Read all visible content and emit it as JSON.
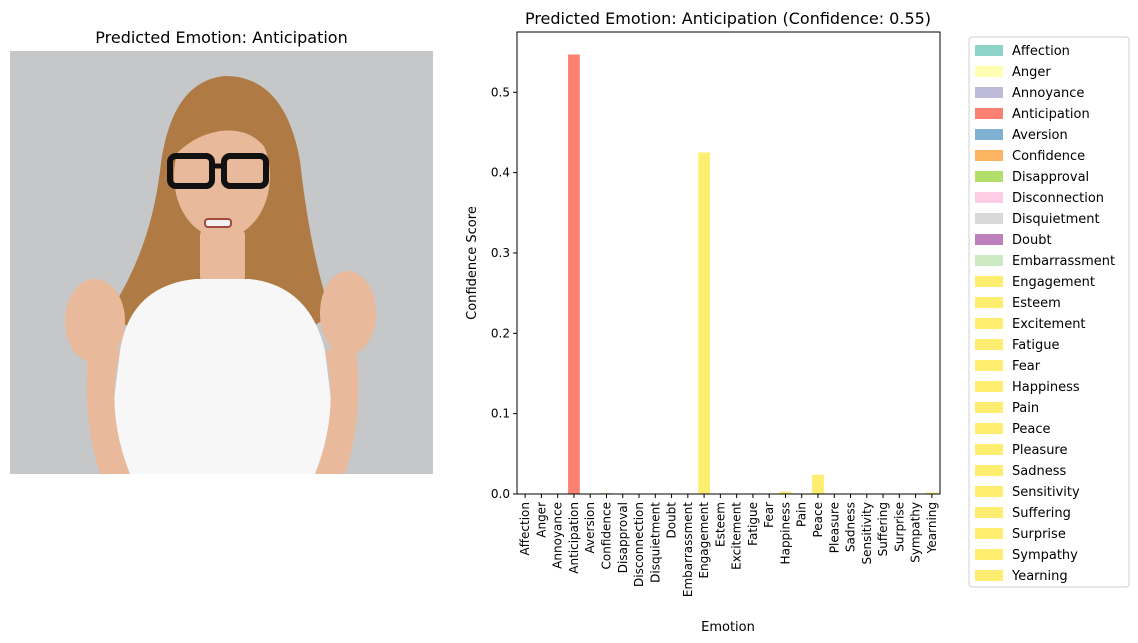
{
  "image_panel": {
    "title": "Predicted Emotion: Anticipation",
    "colors": {
      "background": "#c6c7c9",
      "hair": "#b07a45",
      "skin": "#e9b99c",
      "shirt": "#f7f7f7"
    }
  },
  "chart_data": {
    "type": "bar",
    "title": "Predicted Emotion: Anticipation (Confidence: 0.55)",
    "xlabel": "Emotion",
    "ylabel": "Confidence Score",
    "ylim": [
      0,
      0.575
    ],
    "yticks": [
      "0.0",
      "0.1",
      "0.2",
      "0.3",
      "0.4",
      "0.5"
    ],
    "ytick_values": [
      0,
      0.1,
      0.2,
      0.3,
      0.4,
      0.5
    ],
    "legend_position": "outside-right",
    "grid": false,
    "categories": [
      "Affection",
      "Anger",
      "Annoyance",
      "Anticipation",
      "Aversion",
      "Confidence",
      "Disapproval",
      "Disconnection",
      "Disquietment",
      "Doubt",
      "Embarrassment",
      "Engagement",
      "Esteem",
      "Excitement",
      "Fatigue",
      "Fear",
      "Happiness",
      "Pain",
      "Peace",
      "Pleasure",
      "Sadness",
      "Sensitivity",
      "Suffering",
      "Surprise",
      "Sympathy",
      "Yearning"
    ],
    "values": [
      0.0,
      0.0,
      0.0,
      0.547,
      0.0,
      0.001,
      0.0,
      0.0,
      0.0,
      0.0,
      0.0,
      0.425,
      0.0,
      0.0,
      0.0,
      0.0,
      0.003,
      0.0,
      0.024,
      0.0,
      0.0,
      0.0,
      0.0,
      0.0,
      0.0,
      0.002
    ],
    "colors": [
      "#8dd3c7",
      "#ffffb3",
      "#bebada",
      "#fb8072",
      "#80b1d3",
      "#fdb462",
      "#b3de69",
      "#fccde5",
      "#d9d9d9",
      "#bc80bd",
      "#ccebc5",
      "#ffed6f",
      "#ffed6f",
      "#ffed6f",
      "#ffed6f",
      "#ffed6f",
      "#ffed6f",
      "#ffed6f",
      "#ffed6f",
      "#ffed6f",
      "#ffed6f",
      "#ffed6f",
      "#ffed6f",
      "#ffed6f",
      "#ffed6f",
      "#ffed6f"
    ]
  }
}
